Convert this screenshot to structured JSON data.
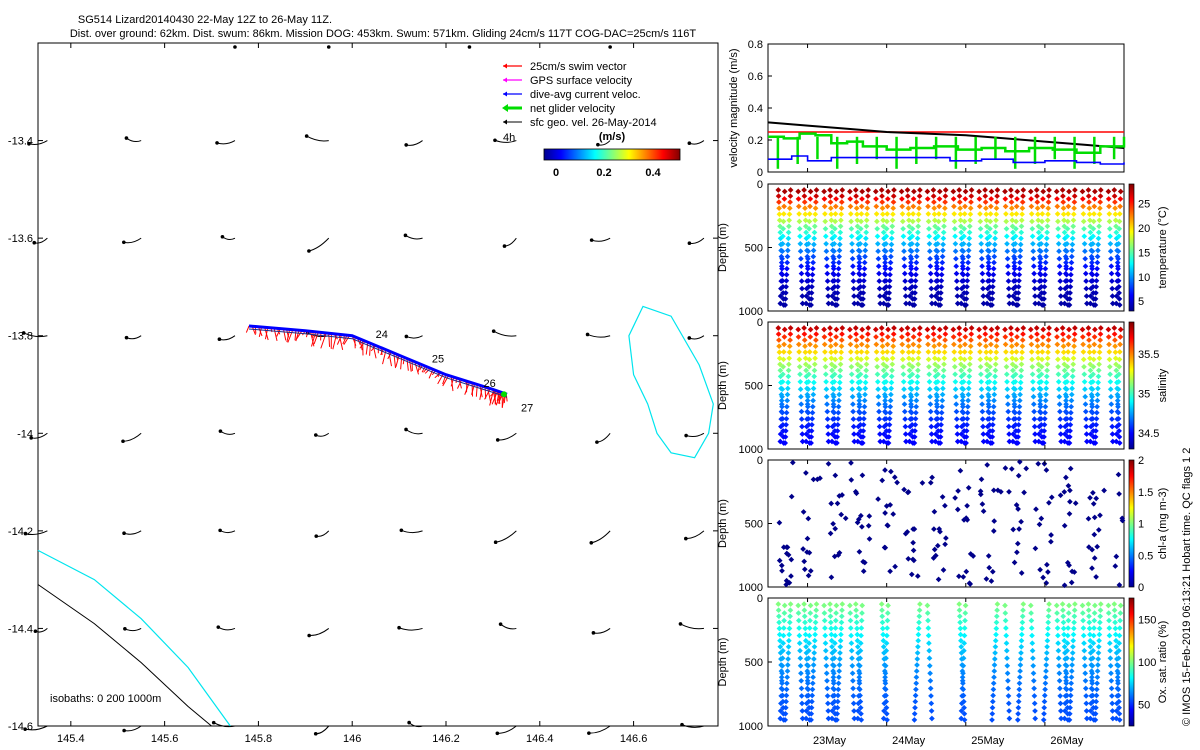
{
  "header": {
    "title": "SG514 Lizard20140430 22-May 12Z to 26-May 11Z.",
    "subtitle": "Dist. over ground: 62km. Dist. swum: 86km. Mission DOG: 453km. Swum: 571km. Gliding 24cm/s 117T COG-DAC=25cm/s 116T"
  },
  "footer_credit": "© IMOS 15-Feb-2019 06:13:21 Hobart time. QC flags 1  2",
  "colors": {
    "swim": "#ff0000",
    "gps": "#ff00ff",
    "dac": "#0000ff",
    "net": "#00dd00",
    "sfc": "#000000",
    "isobath_0": "#00e5ee",
    "isobath_200": "#000000"
  },
  "chart_data": [
    {
      "type": "map",
      "xlim": [
        145.33,
        146.78
      ],
      "ylim": [
        -14.6,
        -13.2
      ],
      "xticks": [
        145.4,
        145.6,
        145.8,
        146,
        146.2,
        146.4,
        146.6
      ],
      "xtick_labels": [
        "145.4",
        "145.6",
        "145.8",
        "146",
        "146.2",
        "146.4",
        "146.6"
      ],
      "yticks": [
        -13.4,
        -13.6,
        -13.8,
        -14,
        -14.2,
        -14.4,
        -14.6
      ],
      "ytick_labels": [
        "-13.4",
        "-13.6",
        "-13.8",
        "-14",
        "-14.2",
        "-14.4",
        "-14.6"
      ],
      "legend": [
        {
          "label": "25cm/s swim vector",
          "color": "#ff0000"
        },
        {
          "label": "GPS surface velocity",
          "color": "#ff00ff"
        },
        {
          "label": "dive-avg current veloc.",
          "color": "#0000ff"
        },
        {
          "label": "net glider velocity",
          "color": "#00dd00"
        },
        {
          "label": "sfc geo. vel. 26-May-2014",
          "color": "#000000"
        }
      ],
      "legend_4h": "4h",
      "colorbar": {
        "label": "(m/s)",
        "ticks": [
          "0",
          "0.2",
          "0.4"
        ],
        "range": [
          0,
          0.5
        ]
      },
      "isobath_note": "isobaths: 0   200  1000m",
      "track": [
        [
          145.78,
          -13.78
        ],
        [
          145.9,
          -13.79
        ],
        [
          146.0,
          -13.8
        ],
        [
          146.1,
          -13.84
        ],
        [
          146.2,
          -13.88
        ],
        [
          146.3,
          -13.91
        ],
        [
          146.33,
          -13.92
        ]
      ],
      "day_labels": [
        {
          "text": "24",
          "lon": 146.05,
          "lat": -13.805
        },
        {
          "text": "25",
          "lon": 146.17,
          "lat": -13.855
        },
        {
          "text": "26",
          "lon": 146.28,
          "lat": -13.905
        },
        {
          "text": "27",
          "lon": 146.36,
          "lat": -13.955
        }
      ],
      "reef_outline": [
        [
          146.62,
          -13.74
        ],
        [
          146.68,
          -13.76
        ],
        [
          146.74,
          -13.86
        ],
        [
          146.77,
          -13.94
        ],
        [
          146.76,
          -14.0
        ],
        [
          146.73,
          -14.05
        ],
        [
          146.68,
          -14.04
        ],
        [
          146.65,
          -14.0
        ],
        [
          146.63,
          -13.94
        ],
        [
          146.6,
          -13.88
        ],
        [
          146.59,
          -13.8
        ]
      ],
      "coast_0m": [
        [
          145.33,
          -14.24
        ],
        [
          145.45,
          -14.3
        ],
        [
          145.55,
          -14.38
        ],
        [
          145.65,
          -14.48
        ],
        [
          145.74,
          -14.6
        ]
      ],
      "coast_200m": [
        [
          145.33,
          -14.31
        ],
        [
          145.45,
          -14.39
        ],
        [
          145.55,
          -14.47
        ],
        [
          145.65,
          -14.56
        ],
        [
          145.7,
          -14.6
        ]
      ],
      "sfc_vectors_grid": {
        "lons": [
          145.35,
          145.55,
          145.75,
          145.95,
          146.15,
          146.35,
          146.55,
          146.75
        ],
        "lats": [
          -13.4,
          -13.6,
          -13.8,
          -14.0,
          -14.2,
          -14.4,
          -14.6
        ]
      }
    },
    {
      "type": "line",
      "ylabel": "velocity magnitude (m/s)",
      "xlim": [
        22.5,
        27.0
      ],
      "ylim": [
        0,
        0.8
      ],
      "yticks": [
        0,
        0.2,
        0.4,
        0.6,
        0.8
      ],
      "series": [
        {
          "color": "#ff0000",
          "x": [
            22.5,
            27.0
          ],
          "y": [
            0.25,
            0.25
          ]
        },
        {
          "color": "#000000",
          "x": [
            22.5,
            23.0,
            23.5,
            24.0,
            24.5,
            25.0,
            25.5,
            26.0,
            26.5,
            27.0
          ],
          "y": [
            0.31,
            0.29,
            0.27,
            0.25,
            0.24,
            0.23,
            0.21,
            0.19,
            0.17,
            0.15
          ]
        },
        {
          "color": "#00dd00",
          "x": [
            22.5,
            22.7,
            22.9,
            23.1,
            23.3,
            23.5,
            23.7,
            24.0,
            24.3,
            24.6,
            24.9,
            25.2,
            25.5,
            25.8,
            26.1,
            26.4,
            26.7,
            27.0
          ],
          "y": [
            0.22,
            0.21,
            0.24,
            0.23,
            0.18,
            0.19,
            0.16,
            0.14,
            0.15,
            0.16,
            0.14,
            0.15,
            0.13,
            0.15,
            0.14,
            0.12,
            0.16,
            0.22
          ]
        },
        {
          "color": "#0000ff",
          "x": [
            22.5,
            22.8,
            23.0,
            23.3,
            23.6,
            24.0,
            24.4,
            24.8,
            25.2,
            25.6,
            26.0,
            26.4,
            26.7,
            27.0
          ],
          "y": [
            0.08,
            0.1,
            0.07,
            0.09,
            0.09,
            0.09,
            0.09,
            0.07,
            0.08,
            0.06,
            0.07,
            0.06,
            0.05,
            0.06
          ]
        }
      ]
    },
    {
      "type": "scatter",
      "ylabel": "Depth (m)",
      "colorbar_label": "temperature (°C)",
      "colorbar_ticks": [
        "5",
        "10",
        "15",
        "20",
        "25"
      ],
      "colorbar_range": [
        3,
        29
      ],
      "ylim": [
        0,
        1000
      ],
      "yticks": [
        "0",
        "500",
        "1000"
      ],
      "surface_value": 28,
      "bottom_value": 4,
      "profile_shape": "thermocline"
    },
    {
      "type": "scatter",
      "ylabel": "Depth (m)",
      "colorbar_label": "salinity",
      "colorbar_ticks": [
        "34.5",
        "35",
        "35.5"
      ],
      "colorbar_range": [
        34.3,
        35.9
      ],
      "ylim": [
        0,
        1000
      ],
      "yticks": [
        "0",
        "500",
        "1000"
      ],
      "surface_value": 35.8,
      "bottom_value": 34.5,
      "profile_shape": "halocline"
    },
    {
      "type": "scatter",
      "ylabel": "Depth (m)",
      "colorbar_label": "chl-a (mg m-3)",
      "colorbar_ticks": [
        "0",
        "0.5",
        "1",
        "1.5",
        "2"
      ],
      "colorbar_range": [
        0,
        2
      ],
      "ylim": [
        0,
        1000
      ],
      "yticks": [
        "0",
        "500",
        "1000"
      ],
      "uniform_value": 0.02,
      "profile_shape": "sparse"
    },
    {
      "type": "scatter",
      "ylabel": "Depth (m)",
      "colorbar_label": "Ox. sat. ratio (%)",
      "colorbar_ticks": [
        "50",
        "100",
        "150"
      ],
      "colorbar_range": [
        25,
        175
      ],
      "ylim": [
        0,
        1000
      ],
      "yticks": [
        "0",
        "500",
        "1000"
      ],
      "surface_value": 105,
      "bottom_value": 55,
      "profile_shape": "oxygen",
      "dive_subset": [
        0,
        1,
        2,
        3,
        4,
        5,
        6,
        8,
        11,
        14,
        17,
        19,
        21,
        22,
        23,
        24,
        25,
        26
      ],
      "x_ticks": [
        {
          "day": 23,
          "label": "23May"
        },
        {
          "day": 24,
          "label": "24May"
        },
        {
          "day": 25,
          "label": "25May"
        },
        {
          "day": 26,
          "label": "26May"
        }
      ]
    }
  ]
}
